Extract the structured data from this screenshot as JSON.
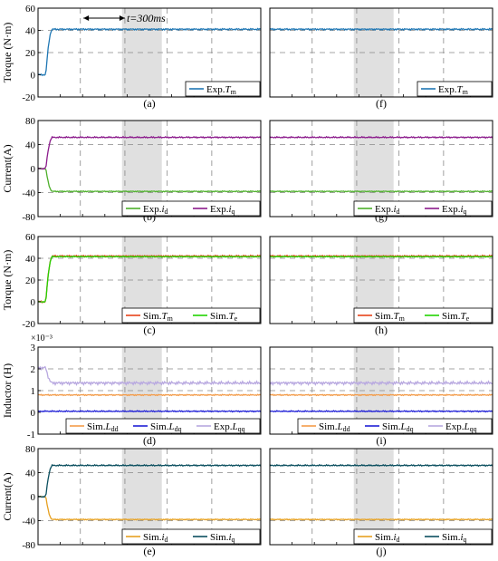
{
  "figure": {
    "shade_x": [
      0.65,
      0.86
    ],
    "annotation": {
      "text": "t=300ms",
      "x_from": 0.09,
      "x_to": 0.2
    },
    "ylabels": [
      "Torque (N·m)",
      "Current(A)",
      "Torque (N·m)",
      "Inductor (H)",
      "Current(A)"
    ],
    "colors": {
      "exp_tm": "#1f77b4",
      "exp_id": "#4daf2a",
      "exp_iq": "#8b1a8b",
      "sim_tm": "#e8431a",
      "sim_te": "#22d400",
      "ldd": "#f39c4a",
      "ldq": "#1f1fd6",
      "lqq": "#b8a8e0",
      "sim_id": "#e6a020",
      "sim_iq": "#0b4f5f",
      "shade": "#e0e0e0"
    }
  },
  "chart_data": [
    {
      "type": "line",
      "panel_label": "(a)",
      "row": 0,
      "col": 0,
      "ylim": [
        -20,
        60
      ],
      "yticks": [
        "-20",
        "0",
        "20",
        "40",
        "60"
      ],
      "grid_y": [
        20,
        40
      ],
      "legend": "bottom-right",
      "scale_note": "",
      "series": [
        {
          "name": "Exp.",
          "sub": "m",
          "base": "T",
          "color_key": "exp_tm",
          "start": 0,
          "final": 41,
          "ripple": 0.5
        }
      ]
    },
    {
      "type": "line",
      "panel_label": "(f)",
      "row": 0,
      "col": 1,
      "ylim": [
        -20,
        60
      ],
      "yticks": [],
      "grid_y": [
        20,
        40
      ],
      "legend": "bottom-right",
      "scale_note": "",
      "series": [
        {
          "name": "Exp.",
          "sub": "m",
          "base": "T",
          "color_key": "exp_tm",
          "start": 41,
          "final": 41,
          "ripple": 0.5
        }
      ]
    },
    {
      "type": "line",
      "panel_label": "(b)",
      "row": 1,
      "col": 0,
      "ylim": [
        -80,
        80
      ],
      "yticks": [
        "-80",
        "-40",
        "0",
        "40",
        "80"
      ],
      "grid_y": [
        40,
        -40
      ],
      "legend": "bottom-right",
      "scale_note": "",
      "series": [
        {
          "name": "Exp.",
          "sub": "d",
          "base": "i",
          "color_key": "exp_id",
          "start": 0,
          "final": -38,
          "ripple": 0.6
        },
        {
          "name": "Exp.",
          "sub": "q",
          "base": "i",
          "color_key": "exp_iq",
          "start": 0,
          "final": 52,
          "ripple": 0.8
        }
      ]
    },
    {
      "type": "line",
      "panel_label": "(g)",
      "row": 1,
      "col": 1,
      "ylim": [
        -80,
        80
      ],
      "yticks": [],
      "grid_y": [
        40,
        -40
      ],
      "legend": "bottom-right",
      "scale_note": "",
      "series": [
        {
          "name": "Exp.",
          "sub": "d",
          "base": "i",
          "color_key": "exp_id",
          "start": -38,
          "final": -38,
          "ripple": 0.6
        },
        {
          "name": "Exp.",
          "sub": "q",
          "base": "i",
          "color_key": "exp_iq",
          "start": 52,
          "final": 52,
          "ripple": 0.8
        }
      ]
    },
    {
      "type": "line",
      "panel_label": "(c)",
      "row": 2,
      "col": 0,
      "ylim": [
        -20,
        60
      ],
      "yticks": [
        "-20",
        "0",
        "20",
        "40",
        "60"
      ],
      "grid_y": [
        20,
        40
      ],
      "legend": "bottom-right",
      "scale_note": "",
      "series": [
        {
          "name": "Sim.",
          "sub": "m",
          "base": "T",
          "color_key": "sim_tm",
          "start": 0,
          "final": 42,
          "ripple": 0.6
        },
        {
          "name": "Sim.",
          "sub": "e",
          "base": "T",
          "color_key": "sim_te",
          "start": 0,
          "final": 41.5,
          "ripple": 0.3
        }
      ]
    },
    {
      "type": "line",
      "panel_label": "(h)",
      "row": 2,
      "col": 1,
      "ylim": [
        -20,
        60
      ],
      "yticks": [],
      "grid_y": [
        20,
        40
      ],
      "legend": "bottom-right",
      "scale_note": "",
      "series": [
        {
          "name": "Sim.",
          "sub": "m",
          "base": "T",
          "color_key": "sim_tm",
          "start": 42,
          "final": 42,
          "ripple": 0.6
        },
        {
          "name": "Sim.",
          "sub": "e",
          "base": "T",
          "color_key": "sim_te",
          "start": 41.5,
          "final": 41.5,
          "ripple": 0.3
        }
      ]
    },
    {
      "type": "line",
      "panel_label": "(d)",
      "row": 3,
      "col": 0,
      "ylim": [
        -1,
        3
      ],
      "yticks": [
        "-1",
        "0",
        "1",
        "2",
        "3"
      ],
      "grid_y": [
        1,
        2
      ],
      "legend": "bottom-right",
      "scale_note": "×10⁻³",
      "series": [
        {
          "name": "Sim.",
          "sub": "dd",
          "base": "L",
          "color_key": "ldd",
          "start": 0.8,
          "final": 0.8,
          "ripple": 0.02
        },
        {
          "name": "Sim.",
          "sub": "dq",
          "base": "L",
          "color_key": "ldq",
          "start": 0.05,
          "final": 0.05,
          "ripple": 0.02
        },
        {
          "name": "Exp.",
          "sub": "qq",
          "base": "L",
          "color_key": "lqq",
          "start": 2.05,
          "final": 1.35,
          "ripple": 0.05
        }
      ]
    },
    {
      "type": "line",
      "panel_label": "(i)",
      "row": 3,
      "col": 1,
      "ylim": [
        -1,
        3
      ],
      "yticks": [],
      "grid_y": [
        1,
        2
      ],
      "legend": "bottom-right",
      "scale_note": "",
      "series": [
        {
          "name": "Sim.",
          "sub": "dd",
          "base": "L",
          "color_key": "ldd",
          "start": 0.8,
          "final": 0.8,
          "ripple": 0.02
        },
        {
          "name": "Sim.",
          "sub": "dq",
          "base": "L",
          "color_key": "ldq",
          "start": 0.05,
          "final": 0.05,
          "ripple": 0.02
        },
        {
          "name": "Exp.",
          "sub": "qq",
          "base": "L",
          "color_key": "lqq",
          "start": 1.35,
          "final": 1.35,
          "ripple": 0.05
        }
      ]
    },
    {
      "type": "line",
      "panel_label": "(e)",
      "row": 4,
      "col": 0,
      "ylim": [
        -80,
        80
      ],
      "yticks": [
        "-80",
        "-40",
        "0",
        "40",
        "80"
      ],
      "grid_y": [
        40,
        -40
      ],
      "legend": "bottom-right",
      "scale_note": "",
      "series": [
        {
          "name": "Sim.",
          "sub": "d",
          "base": "i",
          "color_key": "sim_id",
          "start": 0,
          "final": -38,
          "ripple": 0.6
        },
        {
          "name": "Sim.",
          "sub": "q",
          "base": "i",
          "color_key": "sim_iq",
          "start": 0,
          "final": 52,
          "ripple": 0.8
        }
      ]
    },
    {
      "type": "line",
      "panel_label": "(j)",
      "row": 4,
      "col": 1,
      "ylim": [
        -80,
        80
      ],
      "yticks": [],
      "grid_y": [
        40,
        -40
      ],
      "legend": "bottom-right",
      "scale_note": "",
      "series": [
        {
          "name": "Sim.",
          "sub": "d",
          "base": "i",
          "color_key": "sim_id",
          "start": -38,
          "final": -38,
          "ripple": 0.6
        },
        {
          "name": "Sim.",
          "sub": "q",
          "base": "i",
          "color_key": "sim_iq",
          "start": 52,
          "final": 52,
          "ripple": 0.8
        }
      ]
    }
  ]
}
